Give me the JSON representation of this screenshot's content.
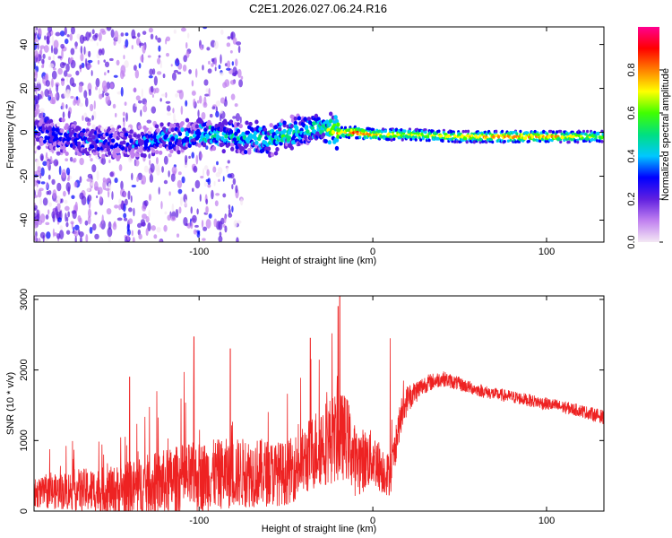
{
  "title": "C2E1.2026.027.06.24.R16",
  "chart_data": [
    {
      "type": "heatmap",
      "xlabel": "Height of straight line (km)",
      "ylabel": "Frequency (Hz)",
      "xlim": [
        -195,
        133
      ],
      "ylim": [
        -50,
        48
      ],
      "xticks": [
        -100,
        0,
        100
      ],
      "yticks": [
        -40,
        -20,
        0,
        20,
        40
      ],
      "colorbar": {
        "label": "Normalized spectral amplitude",
        "range": [
          0,
          1
        ],
        "ticks": [
          0.0,
          0.2,
          0.4,
          0.6,
          0.8
        ],
        "colors": [
          "#f4e8f4",
          "#c080f0",
          "#6020e0",
          "#0000ff",
          "#00c8ff",
          "#00e080",
          "#40ff00",
          "#ffff00",
          "#ff8000",
          "#ff0000",
          "#ff0090"
        ]
      },
      "ridge": {
        "description_points_x": [
          -195,
          -160,
          -140,
          -120,
          -100,
          -80,
          -60,
          -40,
          -30,
          -20,
          -10,
          0,
          20,
          50,
          80,
          100,
          133
        ],
        "description_points_freq": [
          0,
          -4,
          -5,
          -3,
          -1,
          -2,
          -3,
          1,
          2,
          0,
          0,
          -1,
          -1,
          -2,
          -2,
          -2,
          -2
        ],
        "description_points_amplitude": [
          0.3,
          0.3,
          0.3,
          0.35,
          0.45,
          0.45,
          0.5,
          0.5,
          0.5,
          0.75,
          0.9,
          0.8,
          0.7,
          0.75,
          0.85,
          0.8,
          0.65
        ]
      }
    },
    {
      "type": "line",
      "xlabel": "Height of straight line (km)",
      "ylabel": "SNR (10 * v/v)",
      "xlim": [
        -195,
        133
      ],
      "ylim": [
        0,
        3050
      ],
      "xticks": [
        -100,
        0,
        100
      ],
      "yticks": [
        0,
        1000,
        2000,
        3000
      ],
      "color": "#ee2222",
      "envelope_x": [
        -195,
        -170,
        -150,
        -130,
        -110,
        -90,
        -70,
        -50,
        -40,
        -30,
        -20,
        -15,
        -10,
        0,
        5,
        10,
        15,
        20,
        30,
        40,
        50,
        60,
        70,
        80,
        90,
        100,
        110,
        120,
        133
      ],
      "envelope_mean": [
        250,
        300,
        280,
        350,
        450,
        520,
        550,
        530,
        700,
        950,
        1050,
        1050,
        700,
        750,
        600,
        500,
        1200,
        1600,
        1800,
        1880,
        1800,
        1720,
        1660,
        1620,
        1570,
        1520,
        1470,
        1420,
        1330
      ],
      "envelope_spread": [
        200,
        300,
        350,
        450,
        500,
        500,
        500,
        450,
        500,
        600,
        650,
        600,
        500,
        400,
        350,
        300,
        250,
        200,
        130,
        110,
        100,
        90,
        90,
        90,
        90,
        90,
        90,
        90,
        100
      ],
      "peaks": [
        {
          "x": -19,
          "y": 3050
        },
        {
          "x": -20,
          "y": 2900
        },
        {
          "x": -103,
          "y": 2470
        },
        {
          "x": -140,
          "y": 1900
        },
        {
          "x": -82,
          "y": 2300
        },
        {
          "x": -36,
          "y": 2450
        },
        {
          "x": 10,
          "y": 2450
        }
      ]
    }
  ]
}
